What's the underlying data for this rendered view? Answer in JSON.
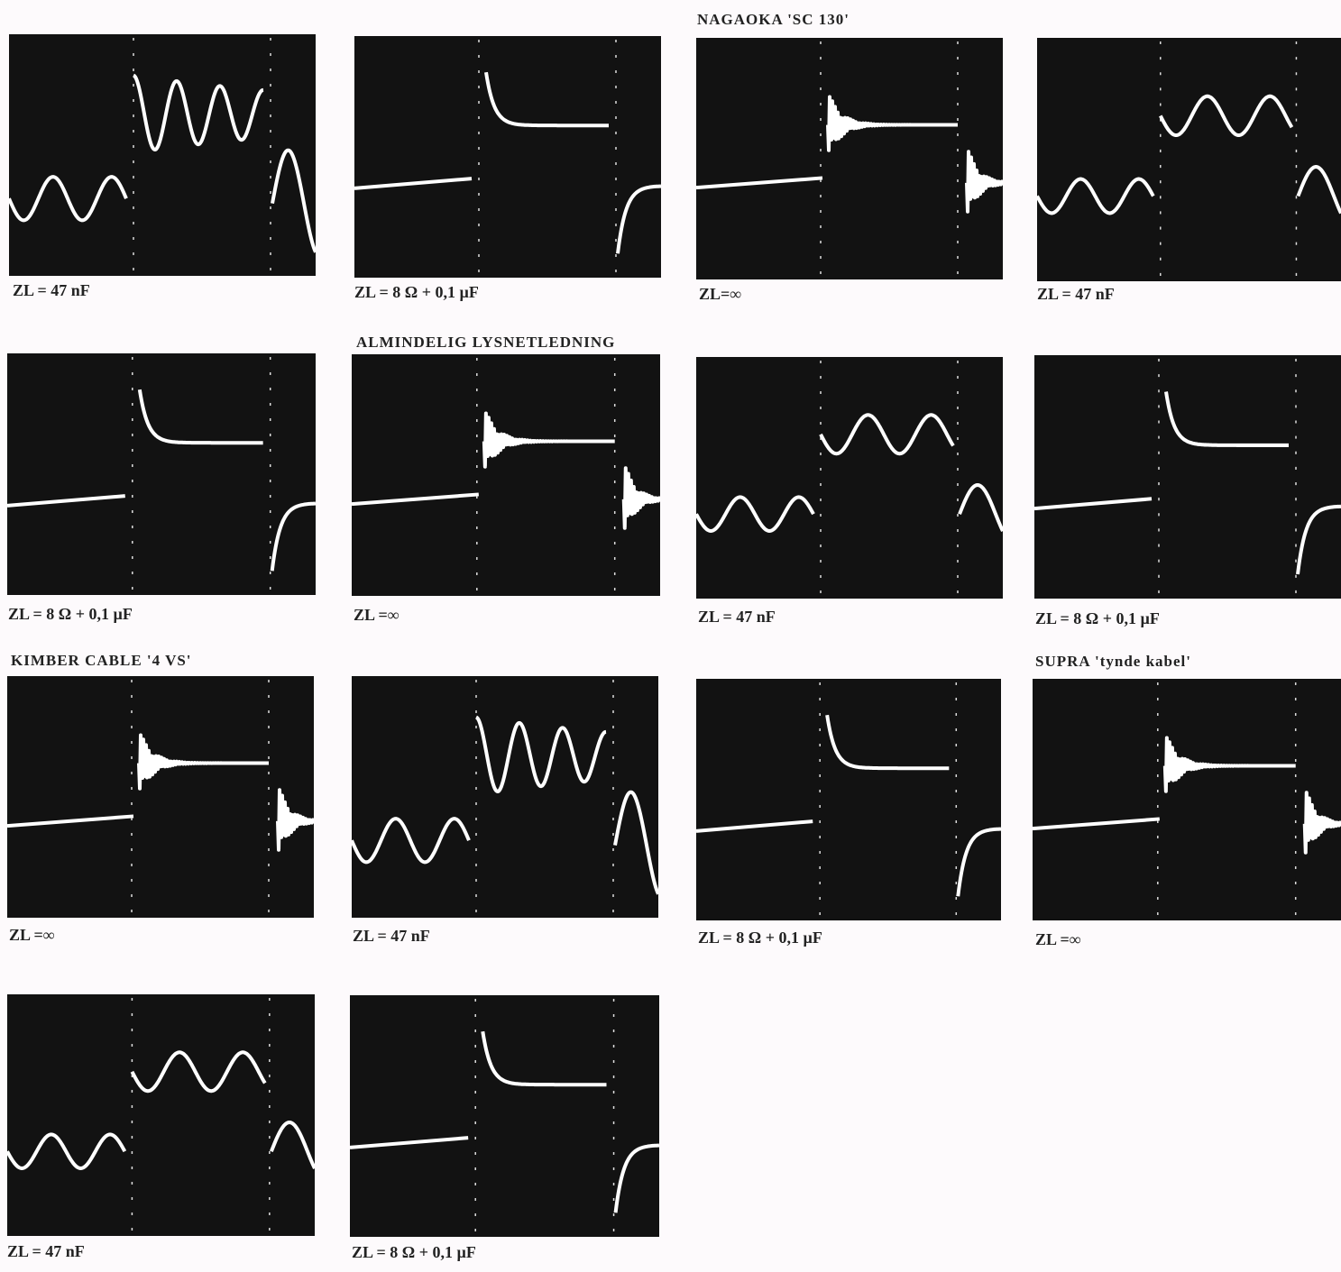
{
  "panels": [
    {
      "caption": "ZL = 47 nF"
    },
    {
      "caption": "ZL = 8 Ω + 0,1 µF"
    },
    {
      "heading": "NAGAOKA 'SC 130'",
      "caption": "ZL=∞"
    },
    {
      "caption": "ZL = 47 nF"
    },
    {
      "caption": "ZL = 8 Ω + 0,1 µF"
    },
    {
      "heading": "ALMINDELIG LYSNETLEDNING",
      "caption": "ZL =∞"
    },
    {
      "caption": "ZL = 47 nF"
    },
    {
      "caption": "ZL = 8 Ω + 0,1 µF"
    },
    {
      "heading": "KIMBER CABLE '4 VS'",
      "caption": "ZL =∞"
    },
    {
      "caption": "ZL = 47 nF"
    },
    {
      "caption": "ZL = 8 Ω + 0,1 µF"
    },
    {
      "heading": "SUPRA 'tynde kabel'",
      "caption": "ZL =∞"
    },
    {
      "caption": "ZL = 47 nF"
    },
    {
      "caption": "ZL = 8 Ω + 0,1 µF"
    }
  ]
}
